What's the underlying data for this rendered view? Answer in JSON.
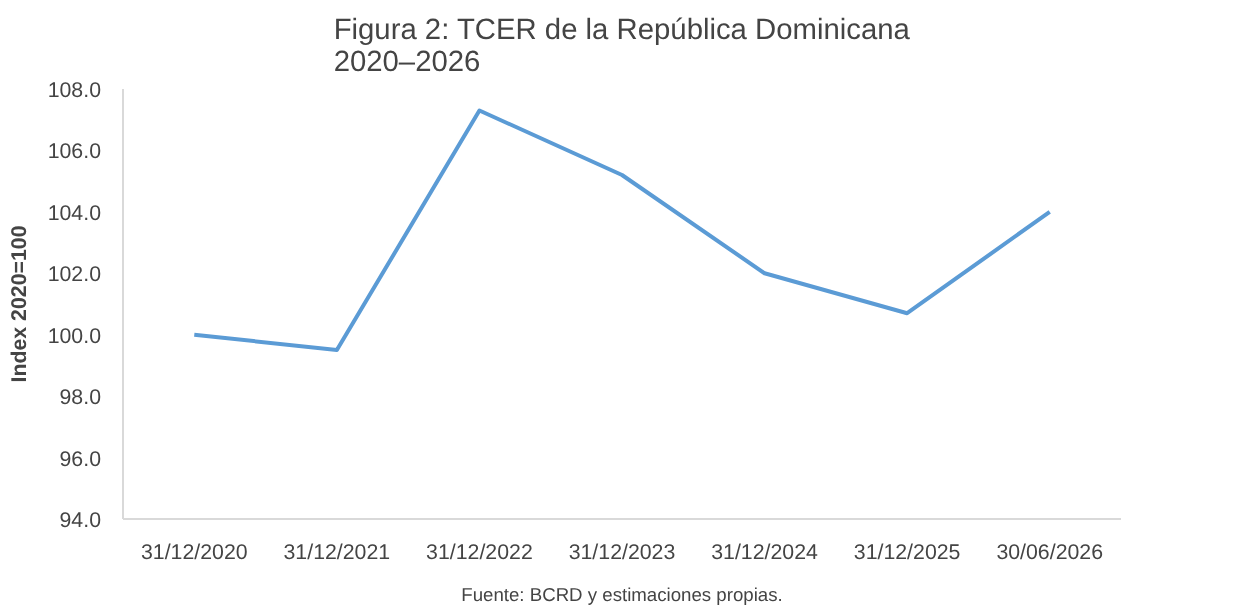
{
  "chart_data": {
    "type": "line",
    "title": "Figura 2: TCER de la República Dominicana\n 2020–2026",
    "ylabel": "Index 2020=100",
    "categories": [
      "31/12/2020",
      "31/12/2021",
      "31/12/2022",
      "31/12/2023",
      "31/12/2024",
      "31/12/2025",
      "30/06/2026"
    ],
    "series": [
      {
        "color": "#5b9bd5",
        "values": [
          100.0,
          99.5,
          107.3,
          105.2,
          102.0,
          100.7,
          104.0
        ]
      }
    ],
    "ylim": [
      94,
      108
    ],
    "yticks": [
      {
        "value": 94,
        "label": "94.0"
      },
      {
        "value": 96,
        "label": "96.0"
      },
      {
        "value": 98,
        "label": "98.0"
      },
      {
        "value": 100,
        "label": "100.0"
      },
      {
        "value": 102,
        "label": "102.0"
      },
      {
        "value": 104,
        "label": "104.0"
      },
      {
        "value": 106,
        "label": "106.0"
      },
      {
        "value": 108,
        "label": "108.0"
      }
    ],
    "grid": false,
    "marker": "none",
    "line_style": "solid",
    "annotations": [
      "Fuente: BCRD y estimaciones propias."
    ]
  }
}
